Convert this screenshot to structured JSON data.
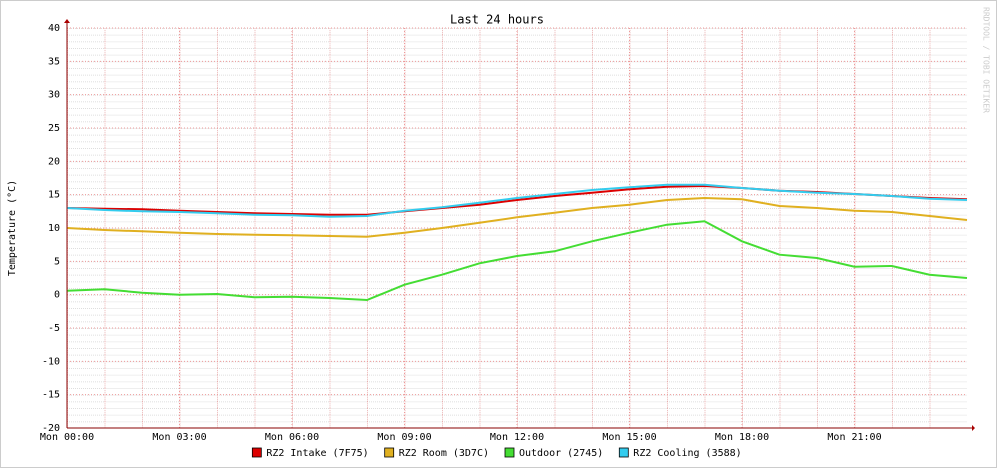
{
  "chart_data": {
    "type": "line",
    "title": "Last 24 hours",
    "y_label": "Temperature (°C)",
    "watermark": "RRDTOOL / TOBI OETIKER",
    "x": [
      0,
      1,
      2,
      3,
      4,
      5,
      6,
      7,
      8,
      9,
      10,
      11,
      12,
      13,
      14,
      15,
      16,
      17,
      18,
      19,
      20,
      21,
      22,
      23,
      24
    ],
    "xlim": [
      0,
      24
    ],
    "xticks": [
      {
        "value": 0,
        "label": "Mon 00:00"
      },
      {
        "value": 3,
        "label": "Mon 03:00"
      },
      {
        "value": 6,
        "label": "Mon 06:00"
      },
      {
        "value": 9,
        "label": "Mon 09:00"
      },
      {
        "value": 12,
        "label": "Mon 12:00"
      },
      {
        "value": 15,
        "label": "Mon 15:00"
      },
      {
        "value": 18,
        "label": "Mon 18:00"
      },
      {
        "value": 21,
        "label": "Mon 21:00"
      }
    ],
    "ylim": [
      -20,
      40
    ],
    "yticks": [
      -20,
      -15,
      -10,
      -5,
      0,
      5,
      10,
      15,
      20,
      25,
      30,
      35,
      40
    ],
    "grid": true,
    "legend": "bottom",
    "series": [
      {
        "name": "RZ2 Intake (7F75)",
        "color": "#dd0000",
        "values": [
          13,
          12.9,
          12.8,
          12.6,
          12.4,
          12.2,
          12.1,
          12,
          12,
          12.5,
          13,
          13.5,
          14.2,
          14.8,
          15.3,
          15.8,
          16.2,
          16.3,
          16,
          15.6,
          15.4,
          15.1,
          14.8,
          14.5,
          14.3
        ]
      },
      {
        "name": "RZ2 Room (3D7C)",
        "color": "#e0b020",
        "values": [
          10,
          9.7,
          9.5,
          9.3,
          9.1,
          9,
          8.9,
          8.8,
          8.7,
          9.3,
          10,
          10.8,
          11.6,
          12.3,
          13,
          13.5,
          14.2,
          14.5,
          14.3,
          13.3,
          13,
          12.6,
          12.4,
          11.8,
          11.2
        ]
      },
      {
        "name": "Outdoor (2745)",
        "color": "#44dd33",
        "values": [
          0.6,
          0.8,
          0.3,
          0,
          0.1,
          -0.4,
          -0.3,
          -0.5,
          -0.8,
          1.5,
          3,
          4.7,
          5.8,
          6.5,
          8,
          9.3,
          10.5,
          11,
          8,
          6,
          5.5,
          4.2,
          4.3,
          3,
          2.5
        ]
      },
      {
        "name": "RZ2 Cooling (3588)",
        "color": "#33ccee",
        "values": [
          13,
          12.7,
          12.5,
          12.4,
          12.2,
          12,
          11.9,
          11.7,
          11.8,
          12.6,
          13.1,
          13.8,
          14.5,
          15.1,
          15.7,
          16.1,
          16.5,
          16.5,
          16,
          15.6,
          15.3,
          15.1,
          14.8,
          14.4,
          14.2
        ]
      }
    ]
  }
}
